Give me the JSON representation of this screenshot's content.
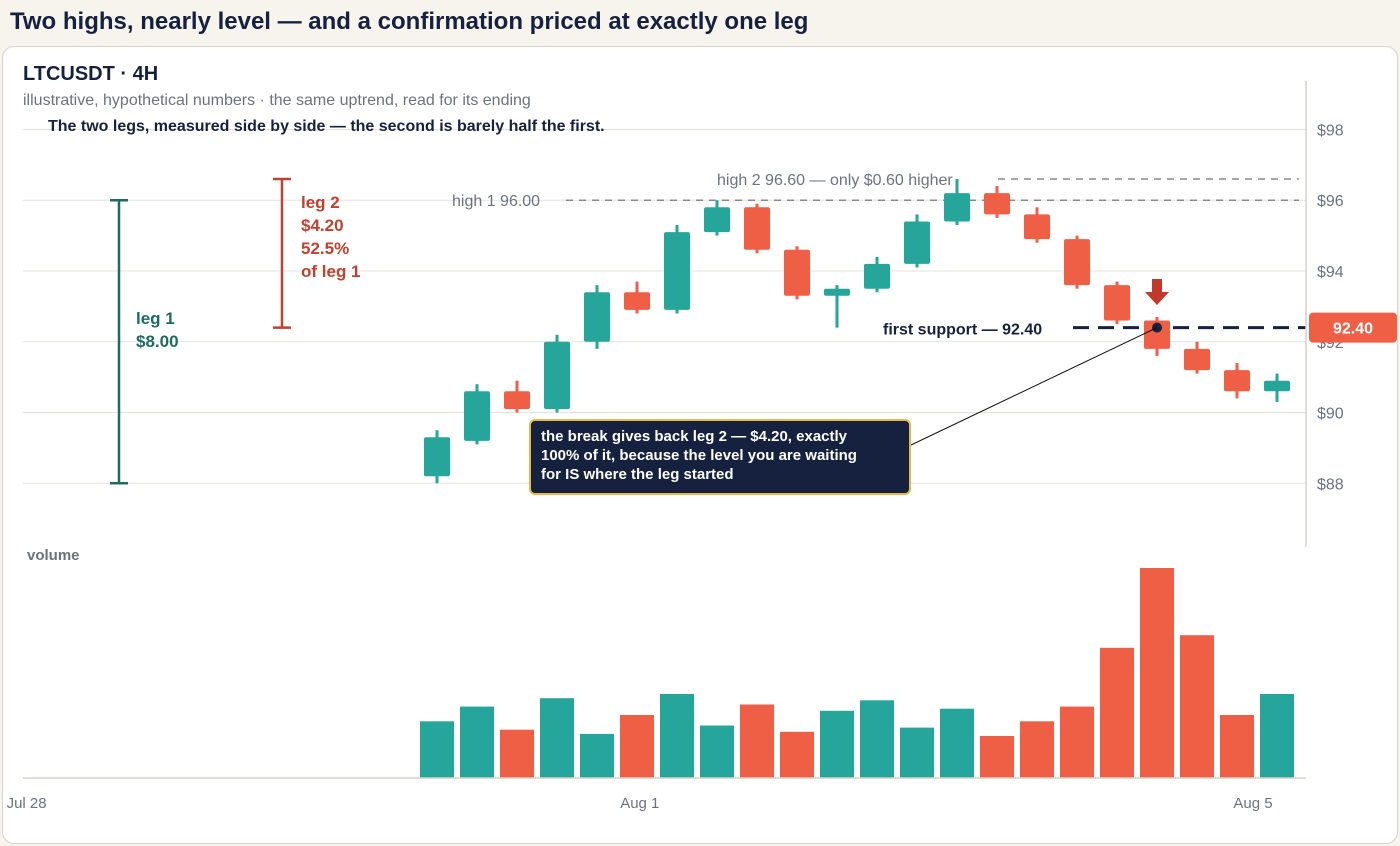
{
  "page": {
    "title": "Two highs, nearly level — and a confirmation priced at exactly one leg"
  },
  "chart_data": {
    "type": "candlestick",
    "title": "LTCUSDT · 4H",
    "subtitle": "illustrative, hypothetical numbers · the same uptrend, read for its ending",
    "headline": "The two legs, measured side by side — the second is barely half the first.",
    "ylim": [
      86.2,
      99.2
    ],
    "yticks": [
      88,
      90,
      92,
      94,
      96,
      98
    ],
    "ytick_labels": [
      "$88",
      "$90",
      "$92",
      "$94",
      "$96",
      "$98"
    ],
    "xticks": [
      {
        "index": -10.26,
        "label": "Jul 28"
      },
      {
        "index": 5.07,
        "label": "Aug 1"
      },
      {
        "index": 20.4,
        "label": "Aug 5"
      }
    ],
    "colors": {
      "up": "#26a69a",
      "down": "#ef5f45",
      "leg1": "#1e6b62",
      "leg2": "#c0412d",
      "navy": "#15213f",
      "guide": "#888888",
      "callout_border": "#e8b84a",
      "callout_bg": "#15213f"
    },
    "candles": [
      {
        "o": 88.2,
        "h": 89.5,
        "l": 88.0,
        "c": 89.3
      },
      {
        "o": 89.2,
        "h": 90.8,
        "l": 89.1,
        "c": 90.6
      },
      {
        "o": 90.6,
        "h": 90.9,
        "l": 90.0,
        "c": 90.1
      },
      {
        "o": 90.1,
        "h": 92.2,
        "l": 90.0,
        "c": 92.0
      },
      {
        "o": 92.0,
        "h": 93.6,
        "l": 91.8,
        "c": 93.4
      },
      {
        "o": 93.4,
        "h": 93.7,
        "l": 92.8,
        "c": 92.9
      },
      {
        "o": 92.9,
        "h": 95.3,
        "l": 92.8,
        "c": 95.1
      },
      {
        "o": 95.1,
        "h": 96.0,
        "l": 95.0,
        "c": 95.8
      },
      {
        "o": 95.8,
        "h": 95.9,
        "l": 94.5,
        "c": 94.6
      },
      {
        "o": 94.6,
        "h": 94.7,
        "l": 93.2,
        "c": 93.3
      },
      {
        "o": 93.3,
        "h": 93.6,
        "l": 92.4,
        "c": 93.5
      },
      {
        "o": 93.5,
        "h": 94.4,
        "l": 93.4,
        "c": 94.2
      },
      {
        "o": 94.2,
        "h": 95.6,
        "l": 94.1,
        "c": 95.4
      },
      {
        "o": 95.4,
        "h": 96.6,
        "l": 95.3,
        "c": 96.2
      },
      {
        "o": 96.2,
        "h": 96.4,
        "l": 95.5,
        "c": 95.6
      },
      {
        "o": 95.6,
        "h": 95.8,
        "l": 94.8,
        "c": 94.9
      },
      {
        "o": 94.9,
        "h": 95.0,
        "l": 93.5,
        "c": 93.6
      },
      {
        "o": 93.6,
        "h": 93.7,
        "l": 92.5,
        "c": 92.6
      },
      {
        "o": 92.6,
        "h": 92.7,
        "l": 91.6,
        "c": 91.8
      },
      {
        "o": 91.8,
        "h": 92.0,
        "l": 91.1,
        "c": 91.2
      },
      {
        "o": 91.2,
        "h": 91.4,
        "l": 90.4,
        "c": 90.6
      },
      {
        "o": 90.6,
        "h": 91.1,
        "l": 90.3,
        "c": 90.9
      }
    ],
    "volume": {
      "label": "volume",
      "max": 100,
      "values": [
        27,
        34,
        23,
        38,
        21,
        30,
        40,
        25,
        35,
        22,
        32,
        37,
        24,
        33,
        20,
        27,
        34,
        62,
        100,
        68,
        30,
        40
      ]
    },
    "levels": {
      "high1": {
        "value": 96.0,
        "label": "high 1  96.00"
      },
      "high2": {
        "value": 96.6,
        "label": "high 2  96.60 — only $0.60 higher"
      },
      "support": {
        "value": 92.4,
        "label": "first support — 92.40",
        "badge": "92.40"
      }
    },
    "legs": [
      {
        "name": "leg 1",
        "from": 88.0,
        "to": 96.0,
        "lines": [
          "leg 1",
          "$8.00"
        ]
      },
      {
        "name": "leg 2",
        "from": 92.4,
        "to": 96.6,
        "lines": [
          "leg 2",
          "$4.20",
          "52.5%",
          "of leg 1"
        ]
      }
    ],
    "signal_candle": 18,
    "callout": {
      "lines": [
        "the break gives back leg 2 — $4.20, exactly",
        "100% of it, because the level you are waiting",
        "for IS where the leg started"
      ]
    }
  }
}
